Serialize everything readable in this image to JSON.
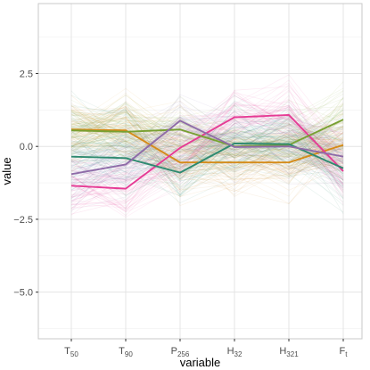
{
  "chart_data": {
    "type": "line",
    "chart_style": "parallel-coordinates",
    "title": "",
    "xlabel": "variable",
    "ylabel": "value",
    "categories": [
      {
        "base": "T",
        "sub": "50"
      },
      {
        "base": "T",
        "sub": "90"
      },
      {
        "base": "P",
        "sub": "256"
      },
      {
        "base": "H",
        "sub": "32"
      },
      {
        "base": "H",
        "sub": "321"
      },
      {
        "base": "F",
        "sub": "t"
      }
    ],
    "ylim": [
      -6.6,
      4.9
    ],
    "yticks": [
      2.5,
      0.0,
      -2.5,
      -5.0
    ],
    "ytick_labels": [
      "2.5",
      "0.0",
      "−2.5",
      "−5.0"
    ],
    "grid": true,
    "background_lines": {
      "description_visible": false,
      "count_per_color": 26,
      "opacity": 0.1,
      "spread": 0.85
    },
    "series": [
      {
        "values": [
          0.45,
          0.7,
          0.2,
          -0.2,
          -0.15,
          0.1
        ],
        "color": "#e6a53a"
      },
      {
        "values": [
          0.6,
          0.6,
          0.55,
          -0.05,
          0.0,
          0.95
        ],
        "color": "#8aad3c"
      },
      {
        "values": [
          -0.3,
          -0.4,
          -0.25,
          0.3,
          0.25,
          -0.1
        ],
        "color": "#26a49a"
      },
      {
        "values": [
          -1.3,
          -1.35,
          -0.55,
          0.95,
          1.0,
          -0.85
        ],
        "color": "#e84ea2"
      },
      {
        "values": [
          -0.95,
          -0.6,
          0.85,
          0.1,
          0.05,
          -0.3
        ],
        "color": "#7e68ad"
      },
      {
        "values": [
          0.55,
          0.5,
          -0.95,
          0.05,
          0.1,
          -0.95
        ],
        "color": "#3f8f73"
      },
      {
        "values": [
          0.58,
          0.55,
          -0.55,
          -0.55,
          -0.55,
          0.05
        ],
        "color": "#d58b19"
      },
      {
        "values": [
          -1.35,
          -1.45,
          -0.05,
          1.0,
          1.08,
          -0.85
        ],
        "color": "#e63b95"
      },
      {
        "values": [
          0.55,
          0.5,
          0.58,
          0.0,
          0.05,
          0.92
        ],
        "color": "#78a032"
      },
      {
        "values": [
          -0.35,
          -0.4,
          -0.9,
          0.1,
          0.08,
          -0.75
        ],
        "color": "#2e8a70"
      },
      {
        "values": [
          -0.95,
          -0.62,
          0.88,
          -0.02,
          0.0,
          -0.35
        ],
        "color": "#8e6ba8"
      },
      {
        "values": [
          0.6,
          0.55,
          -0.55,
          -0.55,
          -0.55,
          0.05
        ],
        "color": "#c47f1c"
      }
    ],
    "highlight_series_indices": [
      6,
      7,
      8,
      9,
      10
    ]
  }
}
